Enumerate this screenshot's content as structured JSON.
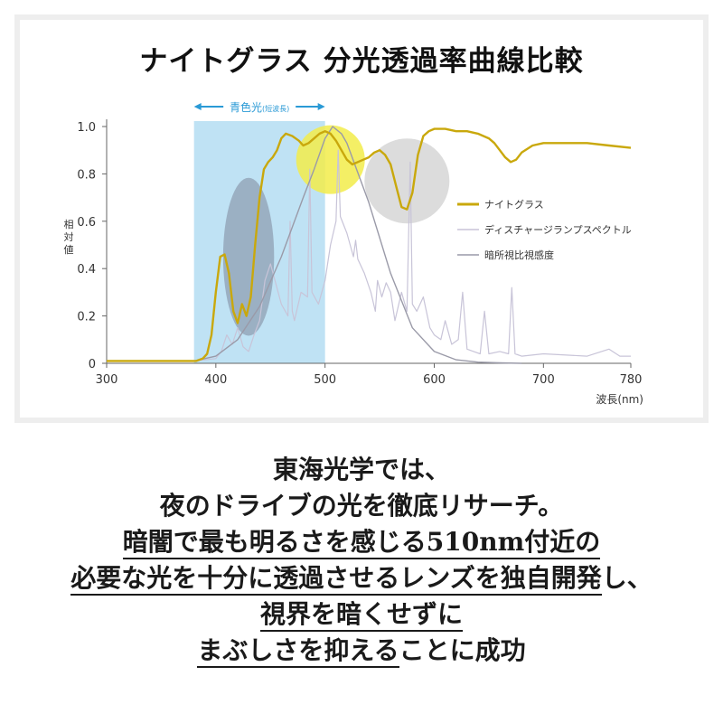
{
  "title": "ナイトグラス 分光透過率曲線比較",
  "chart_data": {
    "type": "line",
    "xlabel": "波長(nm)",
    "ylabel": "相対値",
    "xlim": [
      300,
      780
    ],
    "ylim": [
      0,
      1.0
    ],
    "x_ticks": [
      "300",
      "400",
      "500",
      "600",
      "700",
      "780"
    ],
    "y_ticks": [
      "0",
      "0.2",
      "0.4",
      "0.6",
      "0.8",
      "1.0"
    ],
    "band": {
      "label": "青色光",
      "sublabel": "(短波長)",
      "from": 380,
      "to": 500,
      "color": "#bfe2f4"
    },
    "legend_position": "right",
    "series": [
      {
        "name": "ナイトグラス",
        "color": "#c9a80c",
        "x": [
          300,
          370,
          382,
          388,
          392,
          396,
          400,
          404,
          408,
          412,
          416,
          420,
          424,
          428,
          432,
          436,
          440,
          444,
          448,
          452,
          456,
          460,
          464,
          470,
          476,
          480,
          485,
          490,
          495,
          500,
          505,
          510,
          515,
          520,
          525,
          530,
          535,
          540,
          545,
          550,
          555,
          560,
          565,
          570,
          575,
          580,
          585,
          590,
          595,
          600,
          610,
          620,
          630,
          640,
          650,
          655,
          660,
          665,
          670,
          675,
          680,
          690,
          700,
          720,
          740,
          760,
          780
        ],
        "y": [
          0.01,
          0.01,
          0.01,
          0.02,
          0.04,
          0.12,
          0.3,
          0.45,
          0.46,
          0.38,
          0.22,
          0.17,
          0.25,
          0.2,
          0.28,
          0.5,
          0.7,
          0.82,
          0.85,
          0.87,
          0.9,
          0.95,
          0.97,
          0.96,
          0.94,
          0.92,
          0.93,
          0.95,
          0.97,
          0.98,
          0.97,
          0.94,
          0.9,
          0.86,
          0.84,
          0.85,
          0.86,
          0.87,
          0.89,
          0.9,
          0.88,
          0.84,
          0.75,
          0.66,
          0.65,
          0.72,
          0.88,
          0.96,
          0.98,
          0.99,
          0.99,
          0.98,
          0.98,
          0.97,
          0.95,
          0.93,
          0.9,
          0.87,
          0.85,
          0.86,
          0.89,
          0.92,
          0.93,
          0.93,
          0.93,
          0.92,
          0.91
        ]
      },
      {
        "name": "ディスチャージランプスペクトル",
        "color": "#c8c4d8",
        "x": [
          300,
          380,
          400,
          405,
          410,
          415,
          420,
          425,
          430,
          435,
          440,
          445,
          450,
          460,
          466,
          468,
          470,
          472,
          478,
          484,
          486,
          488,
          494,
          500,
          505,
          510,
          512,
          514,
          520,
          526,
          528,
          530,
          536,
          542,
          546,
          548,
          552,
          556,
          560,
          564,
          570,
          575,
          578,
          580,
          584,
          590,
          596,
          600,
          606,
          610,
          616,
          622,
          626,
          630,
          636,
          642,
          646,
          650,
          660,
          668,
          671,
          674,
          680,
          700,
          740,
          760,
          770,
          780
        ],
        "y": [
          0.01,
          0.01,
          0.02,
          0.05,
          0.12,
          0.08,
          0.15,
          0.07,
          0.05,
          0.12,
          0.18,
          0.35,
          0.42,
          0.25,
          0.2,
          0.6,
          0.22,
          0.18,
          0.3,
          0.28,
          0.82,
          0.3,
          0.25,
          0.35,
          0.5,
          0.6,
          0.9,
          0.62,
          0.55,
          0.45,
          0.52,
          0.44,
          0.38,
          0.3,
          0.22,
          0.35,
          0.28,
          0.34,
          0.3,
          0.18,
          0.3,
          0.22,
          0.85,
          0.25,
          0.22,
          0.28,
          0.15,
          0.12,
          0.1,
          0.18,
          0.08,
          0.1,
          0.3,
          0.06,
          0.05,
          0.04,
          0.22,
          0.04,
          0.05,
          0.04,
          0.32,
          0.04,
          0.03,
          0.04,
          0.03,
          0.06,
          0.03,
          0.03
        ]
      },
      {
        "name": "暗所視比視感度",
        "color": "#9a9aa8",
        "x": [
          380,
          400,
          420,
          440,
          460,
          480,
          490,
          500,
          507,
          515,
          520,
          540,
          560,
          580,
          600,
          620,
          640,
          660,
          680
        ],
        "y": [
          0.01,
          0.03,
          0.1,
          0.24,
          0.45,
          0.7,
          0.82,
          0.95,
          1.0,
          0.97,
          0.93,
          0.68,
          0.38,
          0.15,
          0.05,
          0.015,
          0.005,
          0.002,
          0.0
        ]
      }
    ],
    "highlights": [
      {
        "x": 430,
        "y": 0.45,
        "color": "#8f9fb3"
      },
      {
        "x": 505,
        "y": 0.86,
        "color": "#f2ec4a"
      },
      {
        "x": 575,
        "y": 0.77,
        "color": "#d0d0d0"
      }
    ]
  },
  "caption": {
    "line1": "東海光学では、",
    "line2": "夜のドライブの光を徹底リサーチ。",
    "line3": "暗闇で最も明るさを感じる510nm付近の",
    "line4a": "必要な光を十分に透過させるレンズを独自開発",
    "line4b": "し、",
    "line5": "視界を暗くせずに",
    "line6a": "まぶしさを抑える",
    "line6b": "ことに成功"
  }
}
